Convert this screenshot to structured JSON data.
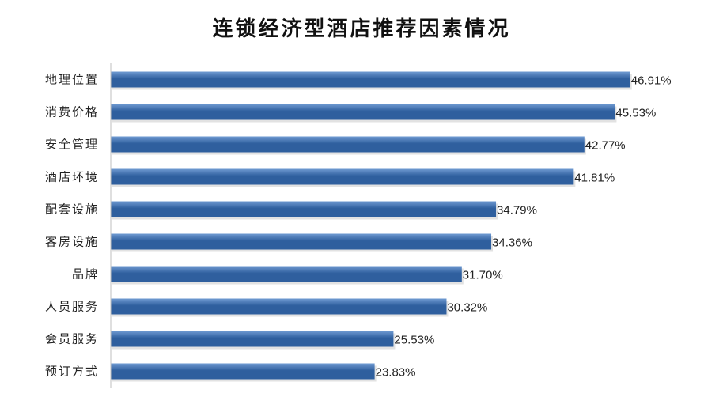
{
  "chart_data": {
    "type": "bar",
    "orientation": "horizontal",
    "title": "连锁经济型酒店推荐因素情况",
    "categories": [
      "地理位置",
      "消费价格",
      "安全管理",
      "酒店环境",
      "配套设施",
      "客房设施",
      "品牌",
      "人员服务",
      "会员服务",
      "预订方式"
    ],
    "values": [
      46.91,
      45.53,
      42.77,
      41.81,
      34.79,
      34.36,
      31.7,
      30.32,
      25.53,
      23.83
    ],
    "value_labels": [
      "46.91%",
      "45.53%",
      "42.77%",
      "41.81%",
      "34.79%",
      "34.36%",
      "31.70%",
      "30.32%",
      "25.53%",
      "23.83%"
    ],
    "xlim": [
      0,
      47
    ],
    "xlabel": "",
    "ylabel": "",
    "grid": false,
    "colors": {
      "bar_dark": "#2f5f9e",
      "bar_light": "#6f9ad2",
      "axis": "#bfbfbf"
    }
  }
}
